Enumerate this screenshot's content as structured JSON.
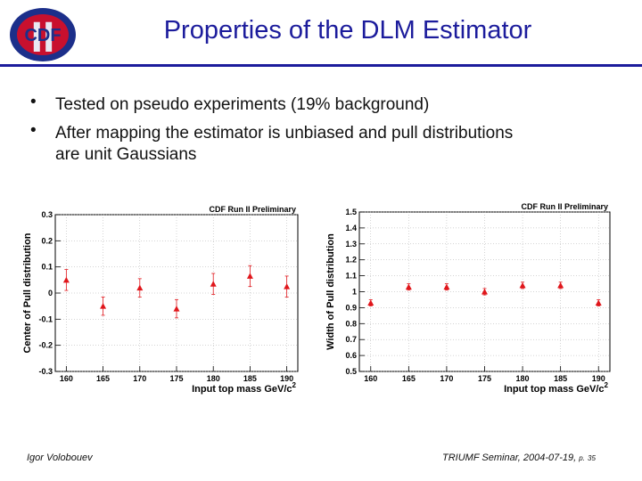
{
  "logo": {
    "text": "CDF",
    "numeral": "II",
    "colors": {
      "ring": "#1c2f8a",
      "fill": "#c8102e",
      "numeral": "#e8e8f2"
    }
  },
  "title": "Properties of the DLM Estimator",
  "bullets": [
    {
      "marker": "•",
      "text": "Tested on pseudo experiments (19% background)"
    },
    {
      "marker": "•",
      "text": "After mapping the estimator is unbiased and pull distributions are unit Gaussians"
    }
  ],
  "chart_data": [
    {
      "type": "scatter",
      "title": "CDF Run II Preliminary",
      "xlabel": "Input top mass GeV/c",
      "xlabel_sup": "2",
      "ylabel": "Center of Pull distribution",
      "x": [
        160,
        165,
        170,
        175,
        180,
        185,
        190
      ],
      "values": [
        0.05,
        -0.05,
        0.02,
        -0.06,
        0.035,
        0.065,
        0.025
      ],
      "errors": [
        0.04,
        0.035,
        0.035,
        0.035,
        0.04,
        0.04,
        0.04
      ],
      "xlim": [
        158.5,
        191.5
      ],
      "ylim": [
        -0.3,
        0.3
      ],
      "xticks": [
        160,
        165,
        170,
        175,
        180,
        185,
        190
      ],
      "yticks": [
        -0.3,
        -0.2,
        -0.1,
        0,
        0.1,
        0.2,
        0.3
      ],
      "ytick_labels": [
        "-0.3",
        "-0.2",
        "-0.1",
        "0",
        "0.1",
        "0.2",
        "0.3"
      ],
      "marker_color": "#e0161b"
    },
    {
      "type": "scatter",
      "title": "CDF Run II Preliminary",
      "xlabel": "Input top mass GeV/c",
      "xlabel_sup": "2",
      "ylabel": "Width of Pull distribution",
      "x": [
        160,
        165,
        170,
        175,
        180,
        185,
        190
      ],
      "values": [
        0.93,
        1.03,
        1.03,
        1.0,
        1.04,
        1.04,
        0.93
      ],
      "errors": [
        0.02,
        0.02,
        0.02,
        0.02,
        0.02,
        0.02,
        0.02
      ],
      "xlim": [
        158.5,
        191.5
      ],
      "ylim": [
        0.5,
        1.5
      ],
      "xticks": [
        160,
        165,
        170,
        175,
        180,
        185,
        190
      ],
      "yticks": [
        0.5,
        0.6,
        0.7,
        0.8,
        0.9,
        1.0,
        1.1,
        1.2,
        1.3,
        1.4,
        1.5
      ],
      "ytick_labels": [
        "0.5",
        "0.6",
        "0.7",
        "0.8",
        "0.9",
        "1",
        "1.1",
        "1.2",
        "1.3",
        "1.4",
        "1.5"
      ],
      "marker_color": "#e0161b"
    }
  ],
  "footer": {
    "author": "Igor Volobouev",
    "venue": "TRIUMF Seminar, 2004-07-19,",
    "page_prefix": "p.",
    "page": "35"
  }
}
